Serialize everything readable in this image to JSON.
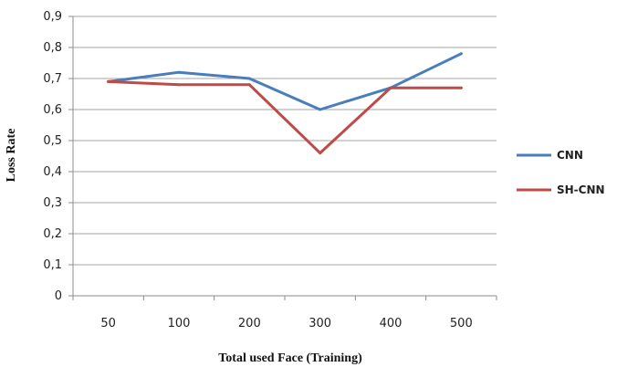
{
  "chart_data": {
    "type": "line",
    "categories": [
      "50",
      "100",
      "200",
      "300",
      "400",
      "500"
    ],
    "series": [
      {
        "name": "CNN",
        "color": "#4a7ebb",
        "values": [
          0.69,
          0.72,
          0.7,
          0.6,
          0.67,
          0.78
        ]
      },
      {
        "name": "SH-CNN",
        "color": "#be4b48",
        "values": [
          0.69,
          0.68,
          0.68,
          0.46,
          0.67,
          0.67
        ]
      }
    ],
    "xlabel": "Total used Face (Training)",
    "ylabel": "Loss Rate",
    "ylim": [
      0,
      0.9
    ],
    "yticks": [
      "0",
      "0,1",
      "0,2",
      "0,3",
      "0,4",
      "0,5",
      "0,6",
      "0,7",
      "0,8",
      "0,9"
    ],
    "grid": true,
    "legend_position": "right"
  }
}
